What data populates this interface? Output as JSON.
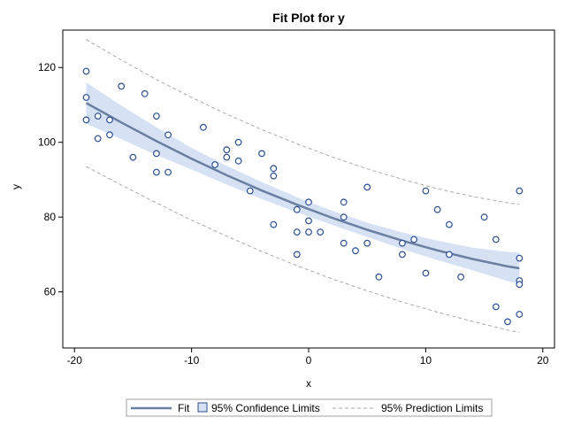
{
  "chart_data": {
    "type": "scatter",
    "title": "Fit Plot for y",
    "xlabel": "x",
    "ylabel": "y",
    "xlim": [
      -21,
      21
    ],
    "ylim": [
      45,
      130
    ],
    "xticks": [
      -20,
      -10,
      0,
      10,
      20
    ],
    "yticks": [
      60,
      80,
      100,
      120
    ],
    "grid": false,
    "legend_position": "bottom",
    "legend": {
      "fit": "Fit",
      "confidence": "95% Confidence Limits",
      "prediction": "95% Prediction Limits"
    },
    "colors": {
      "fit_line": "#6b7fa3",
      "confidence_band": "#d6e2f4",
      "prediction_line": "#a9a9a9",
      "marker": "#2b4e93"
    },
    "fit_curve": {
      "x": [
        -19,
        -16,
        -13,
        -10,
        -7,
        -4,
        -1,
        2,
        5,
        8,
        11,
        14,
        17,
        18
      ],
      "y": [
        110.5,
        105.3,
        100.3,
        95.6,
        91.2,
        87.1,
        83.3,
        79.8,
        76.6,
        73.7,
        71.1,
        68.8,
        66.8,
        66.3
      ]
    },
    "confidence_limits": {
      "upper": [
        116.0,
        109.8,
        104.0,
        98.5,
        93.7,
        89.4,
        85.3,
        81.7,
        78.5,
        75.9,
        73.7,
        71.8,
        70.7,
        70.5
      ],
      "lower": [
        105.0,
        100.8,
        96.6,
        92.7,
        88.7,
        84.8,
        81.3,
        77.9,
        74.7,
        71.5,
        68.5,
        65.8,
        62.9,
        62.1
      ]
    },
    "prediction_limits": {
      "upper": [
        127.5,
        122.0,
        116.8,
        112.0,
        107.5,
        103.4,
        99.6,
        96.1,
        92.9,
        90.1,
        87.6,
        85.5,
        83.8,
        83.4
      ],
      "lower": [
        93.5,
        88.6,
        83.8,
        79.2,
        74.9,
        70.8,
        67.0,
        63.5,
        60.3,
        57.3,
        54.6,
        52.1,
        49.8,
        49.2
      ]
    },
    "points": [
      {
        "x": -19,
        "y": 119
      },
      {
        "x": -19,
        "y": 112
      },
      {
        "x": -19,
        "y": 106
      },
      {
        "x": -18,
        "y": 107
      },
      {
        "x": -18,
        "y": 101
      },
      {
        "x": -17,
        "y": 106
      },
      {
        "x": -17,
        "y": 102
      },
      {
        "x": -16,
        "y": 115
      },
      {
        "x": -15,
        "y": 96
      },
      {
        "x": -14,
        "y": 113
      },
      {
        "x": -13,
        "y": 107
      },
      {
        "x": -13,
        "y": 97
      },
      {
        "x": -13,
        "y": 92
      },
      {
        "x": -12,
        "y": 102
      },
      {
        "x": -12,
        "y": 92
      },
      {
        "x": -9,
        "y": 104
      },
      {
        "x": -8,
        "y": 94
      },
      {
        "x": -7,
        "y": 98
      },
      {
        "x": -7,
        "y": 96
      },
      {
        "x": -6,
        "y": 100
      },
      {
        "x": -6,
        "y": 95
      },
      {
        "x": -5,
        "y": 87
      },
      {
        "x": -4,
        "y": 97
      },
      {
        "x": -3,
        "y": 93
      },
      {
        "x": -3,
        "y": 91
      },
      {
        "x": -3,
        "y": 78
      },
      {
        "x": -1,
        "y": 82
      },
      {
        "x": -1,
        "y": 76
      },
      {
        "x": -1,
        "y": 70
      },
      {
        "x": 0,
        "y": 84
      },
      {
        "x": 0,
        "y": 79
      },
      {
        "x": 0,
        "y": 76
      },
      {
        "x": 1,
        "y": 76
      },
      {
        "x": 3,
        "y": 84
      },
      {
        "x": 3,
        "y": 80
      },
      {
        "x": 3,
        "y": 73
      },
      {
        "x": 4,
        "y": 71
      },
      {
        "x": 5,
        "y": 88
      },
      {
        "x": 5,
        "y": 73
      },
      {
        "x": 6,
        "y": 64
      },
      {
        "x": 8,
        "y": 73
      },
      {
        "x": 8,
        "y": 70
      },
      {
        "x": 9,
        "y": 74
      },
      {
        "x": 10,
        "y": 87
      },
      {
        "x": 10,
        "y": 65
      },
      {
        "x": 11,
        "y": 82
      },
      {
        "x": 12,
        "y": 78
      },
      {
        "x": 12,
        "y": 70
      },
      {
        "x": 13,
        "y": 64
      },
      {
        "x": 15,
        "y": 80
      },
      {
        "x": 16,
        "y": 74
      },
      {
        "x": 16,
        "y": 56
      },
      {
        "x": 17,
        "y": 52
      },
      {
        "x": 18,
        "y": 87
      },
      {
        "x": 18,
        "y": 69
      },
      {
        "x": 18,
        "y": 63
      },
      {
        "x": 18,
        "y": 62
      },
      {
        "x": 18,
        "y": 54
      }
    ]
  }
}
